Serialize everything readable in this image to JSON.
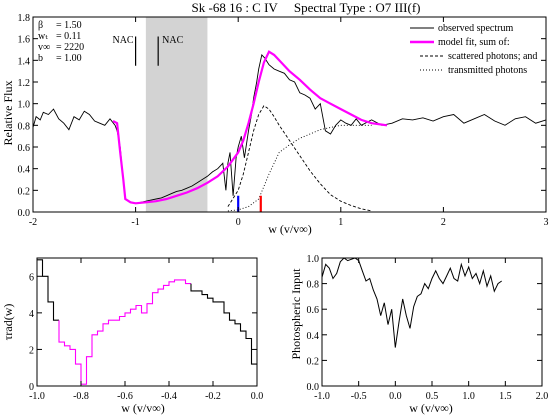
{
  "chart_data": [
    {
      "type": "line",
      "title": "Sk -68 16 : C IV     Spectral Type : O7 III(f)",
      "xlabel": "w (v/v∞)",
      "ylabel": "Relative Flux",
      "xlim": [
        -2,
        3
      ],
      "ylim": [
        0,
        1.8
      ],
      "xticks": [
        "-2",
        "-1",
        "0",
        "1",
        "2",
        "3"
      ],
      "yticks": [
        "0.0",
        "0.2",
        "0.4",
        "0.6",
        "0.8",
        "1.0",
        "1.2",
        "1.4",
        "1.6",
        "1.8"
      ],
      "grid": false,
      "shaded_region": [
        -0.9,
        -0.3
      ],
      "params": [
        {
          "symbol": "β",
          "value": "1.50"
        },
        {
          "symbol": "wₜ",
          "value": "0.11"
        },
        {
          "symbol": "v∞",
          "value": "2220"
        },
        {
          "symbol": "b",
          "value": "1.00"
        }
      ],
      "annotations": [
        {
          "text": "NAC",
          "x": -1.0,
          "y": 1.56
        },
        {
          "text": "NAC",
          "x": -0.75,
          "y": 1.56
        }
      ],
      "marker_lines": [
        {
          "x": -1.0,
          "y_from": 1.35,
          "y_to": 1.62,
          "color": "#000000"
        },
        {
          "x": -0.78,
          "y_from": 1.35,
          "y_to": 1.62,
          "color": "#000000"
        },
        {
          "x": 0.0,
          "y_from": 0.0,
          "y_to": 0.15,
          "color": "#0000ff"
        },
        {
          "x": 0.22,
          "y_from": 0.0,
          "y_to": 0.15,
          "color": "#ff0000"
        }
      ],
      "legend": {
        "placement": "top-right",
        "entries": [
          {
            "label": "observed spectrum",
            "style": "solid",
            "color": "#000000"
          },
          {
            "label": "model fit, sum of:",
            "style": "thick",
            "color": "#ff00ff"
          },
          {
            "label": "scattered photons; and",
            "style": "dashed",
            "color": "#000000"
          },
          {
            "label": "transmitted photons",
            "style": "dotted",
            "color": "#000000"
          }
        ]
      },
      "series": [
        {
          "name": "observed spectrum",
          "x": [
            -2.0,
            -1.97,
            -1.93,
            -1.9,
            -1.85,
            -1.8,
            -1.75,
            -1.7,
            -1.65,
            -1.6,
            -1.55,
            -1.5,
            -1.45,
            -1.4,
            -1.35,
            -1.3,
            -1.25,
            -1.2,
            -1.18,
            -1.15,
            -1.12,
            -1.1,
            -1.05,
            -1.0,
            -0.95,
            -0.9,
            -0.85,
            -0.8,
            -0.75,
            -0.7,
            -0.65,
            -0.6,
            -0.55,
            -0.5,
            -0.45,
            -0.4,
            -0.35,
            -0.3,
            -0.25,
            -0.2,
            -0.15,
            -0.12,
            -0.1,
            -0.08,
            -0.05,
            -0.02,
            0.0,
            0.03,
            0.06,
            0.1,
            0.13,
            0.15,
            0.18,
            0.2,
            0.23,
            0.26,
            0.3,
            0.35,
            0.4,
            0.45,
            0.5,
            0.55,
            0.6,
            0.65,
            0.7,
            0.75,
            0.8,
            0.85,
            0.9,
            0.95,
            1.0,
            1.05,
            1.1,
            1.15,
            1.2,
            1.3,
            1.4,
            1.5,
            1.6,
            1.7,
            1.8,
            1.9,
            2.0,
            2.1,
            2.2,
            2.3,
            2.4,
            2.5,
            2.6,
            2.7,
            2.8,
            2.9,
            3.0
          ],
          "y": [
            0.78,
            0.88,
            0.85,
            0.92,
            0.9,
            0.95,
            0.86,
            0.82,
            0.76,
            0.88,
            0.85,
            0.93,
            0.9,
            0.84,
            0.82,
            0.8,
            0.86,
            0.8,
            0.75,
            0.6,
            0.3,
            0.12,
            0.09,
            0.08,
            0.09,
            0.1,
            0.11,
            0.12,
            0.13,
            0.15,
            0.17,
            0.19,
            0.2,
            0.22,
            0.24,
            0.27,
            0.3,
            0.33,
            0.37,
            0.4,
            0.45,
            0.2,
            0.45,
            0.55,
            0.15,
            0.5,
            0.6,
            0.7,
            0.5,
            0.75,
            0.9,
            1.05,
            1.2,
            1.32,
            1.45,
            1.42,
            1.36,
            1.32,
            1.3,
            1.28,
            1.22,
            1.2,
            1.1,
            1.08,
            1.05,
            0.95,
            1.0,
            0.75,
            0.72,
            0.8,
            0.85,
            0.82,
            0.8,
            0.86,
            0.8,
            0.85,
            0.8,
            0.82,
            0.86,
            0.85,
            0.87,
            0.84,
            0.88,
            0.9,
            0.82,
            0.86,
            0.9,
            0.84,
            0.8,
            0.86,
            0.88,
            0.82,
            0.85
          ]
        },
        {
          "name": "model fit, sum of:",
          "x": [
            -1.22,
            -1.18,
            -1.15,
            -1.12,
            -1.1,
            -1.05,
            -1.0,
            -0.9,
            -0.8,
            -0.7,
            -0.6,
            -0.5,
            -0.4,
            -0.3,
            -0.2,
            -0.1,
            0.0,
            0.05,
            0.1,
            0.15,
            0.2,
            0.25,
            0.3,
            0.35,
            0.4,
            0.5,
            0.6,
            0.7,
            0.8,
            0.9,
            1.0,
            1.1,
            1.2,
            1.3,
            1.45
          ],
          "y": [
            0.84,
            0.82,
            0.55,
            0.3,
            0.12,
            0.09,
            0.08,
            0.09,
            0.1,
            0.12,
            0.15,
            0.18,
            0.22,
            0.27,
            0.33,
            0.42,
            0.55,
            0.66,
            0.82,
            1.0,
            1.2,
            1.38,
            1.48,
            1.45,
            1.4,
            1.3,
            1.22,
            1.13,
            1.05,
            1.0,
            0.95,
            0.9,
            0.85,
            0.82,
            0.8
          ]
        },
        {
          "name": "scattered photons; and",
          "x": [
            -0.1,
            0.0,
            0.05,
            0.1,
            0.15,
            0.2,
            0.25,
            0.3,
            0.35,
            0.4,
            0.5,
            0.6,
            0.7,
            0.8,
            0.9,
            1.0,
            1.1,
            1.2,
            1.3
          ],
          "y": [
            0.05,
            0.2,
            0.35,
            0.55,
            0.75,
            0.9,
            0.98,
            0.95,
            0.88,
            0.8,
            0.66,
            0.52,
            0.38,
            0.26,
            0.16,
            0.1,
            0.06,
            0.03,
            0.01
          ]
        },
        {
          "name": "transmitted photons",
          "x": [
            -0.1,
            0.0,
            0.1,
            0.2,
            0.3,
            0.4,
            0.5,
            0.6,
            0.7,
            0.8,
            0.9,
            1.0,
            1.1,
            1.2,
            1.3
          ],
          "y": [
            0.01,
            0.02,
            0.05,
            0.12,
            0.35,
            0.55,
            0.62,
            0.68,
            0.72,
            0.76,
            0.78,
            0.8,
            0.8,
            0.8,
            0.8
          ]
        }
      ]
    },
    {
      "type": "line",
      "title": "",
      "xlabel": "w (v/v∞)",
      "ylabel": "τrad(w)",
      "xlim": [
        -1.0,
        0.0
      ],
      "ylim": [
        0,
        7
      ],
      "xticks": [
        "-1.0",
        "-0.8",
        "-0.6",
        "-0.4",
        "-0.2",
        "0.0"
      ],
      "yticks": [
        "0",
        "2",
        "4",
        "6"
      ],
      "grid": false,
      "series": [
        {
          "style": "step",
          "x": [
            -1.0,
            -0.975,
            -0.95,
            -0.925,
            -0.9,
            -0.875,
            -0.85,
            -0.825,
            -0.8,
            -0.775,
            -0.75,
            -0.725,
            -0.7,
            -0.675,
            -0.65,
            -0.625,
            -0.6,
            -0.575,
            -0.55,
            -0.525,
            -0.5,
            -0.475,
            -0.45,
            -0.425,
            -0.4,
            -0.375,
            -0.35,
            -0.325,
            -0.3,
            -0.275,
            -0.25,
            -0.225,
            -0.2,
            -0.175,
            -0.15,
            -0.125,
            -0.1,
            -0.075,
            -0.05,
            -0.025
          ],
          "y": [
            6.9,
            6.0,
            4.6,
            3.6,
            2.4,
            2.2,
            2.0,
            1.2,
            0.1,
            1.6,
            2.8,
            3.0,
            3.4,
            3.6,
            3.6,
            3.8,
            4.0,
            4.2,
            4.4,
            4.0,
            4.5,
            5.1,
            5.3,
            5.5,
            5.7,
            5.8,
            5.8,
            5.6,
            5.2,
            5.2,
            5.0,
            4.8,
            4.6,
            4.6,
            4.0,
            3.6,
            3.4,
            3.0,
            2.6,
            1.2
          ],
          "colored_segment": {
            "x_from": -0.9,
            "x_to": -0.325,
            "color": "#ff00ff"
          }
        }
      ]
    },
    {
      "type": "line",
      "title": "",
      "xlabel": "w (v/v∞)",
      "ylabel": "Photospheric Input",
      "xlim": [
        -1.0,
        2.0
      ],
      "ylim": [
        0,
        1.0
      ],
      "xticks": [
        "-1.0",
        "-0.5",
        "0.0",
        "0.5",
        "1.0",
        "1.5",
        "2.0"
      ],
      "yticks": [
        "0.0",
        "0.2",
        "0.4",
        "0.6",
        "0.8",
        "1.0"
      ],
      "grid": false,
      "series": [
        {
          "x": [
            -1.0,
            -0.95,
            -0.9,
            -0.85,
            -0.8,
            -0.75,
            -0.7,
            -0.65,
            -0.6,
            -0.55,
            -0.5,
            -0.45,
            -0.4,
            -0.35,
            -0.3,
            -0.25,
            -0.2,
            -0.15,
            -0.1,
            -0.05,
            0.0,
            0.05,
            0.1,
            0.15,
            0.2,
            0.25,
            0.3,
            0.35,
            0.4,
            0.45,
            0.5,
            0.55,
            0.6,
            0.65,
            0.7,
            0.75,
            0.8,
            0.85,
            0.9,
            0.95,
            1.0,
            1.05,
            1.1,
            1.15,
            1.2,
            1.25,
            1.3,
            1.35,
            1.4,
            1.45
          ],
          "y": [
            0.85,
            0.95,
            0.92,
            0.84,
            0.88,
            0.97,
            1.0,
            0.98,
            0.99,
            1.0,
            0.98,
            0.9,
            0.82,
            0.84,
            0.75,
            0.68,
            0.55,
            0.65,
            0.48,
            0.6,
            0.3,
            0.5,
            0.68,
            0.55,
            0.45,
            0.62,
            0.7,
            0.72,
            0.8,
            0.76,
            0.84,
            0.9,
            0.84,
            0.8,
            0.86,
            0.92,
            0.84,
            0.82,
            0.95,
            0.86,
            0.93,
            0.84,
            0.88,
            0.8,
            0.9,
            0.78,
            0.86,
            0.74,
            0.8,
            0.82
          ]
        }
      ]
    }
  ]
}
